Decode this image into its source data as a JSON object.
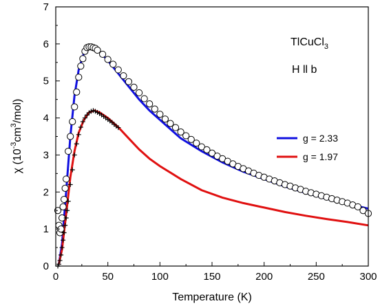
{
  "chart_data": {
    "type": "scatter",
    "annotations": {
      "compound_base": "TlCuCl",
      "compound_sub": "3",
      "field": "H ll b"
    },
    "xlabel": "Temperature (K)",
    "ylabel_parts": [
      "χ  (10",
      "-3",
      "cm",
      "3",
      "/mol)"
    ],
    "xlim": [
      0,
      300
    ],
    "ylim": [
      0,
      7
    ],
    "x_ticks": [
      0,
      50,
      100,
      150,
      200,
      250,
      300
    ],
    "y_ticks": [
      0,
      1,
      2,
      3,
      4,
      5,
      6,
      7
    ],
    "grid": false,
    "legend_position": "right-middle",
    "fits": [
      {
        "name": "g = 2.33",
        "color": "#1010e0",
        "points": [
          [
            3,
            0.05
          ],
          [
            6,
            0.6
          ],
          [
            10,
            2.0
          ],
          [
            14,
            3.5
          ],
          [
            18,
            4.6
          ],
          [
            22,
            5.3
          ],
          [
            27,
            5.75
          ],
          [
            32,
            5.9
          ],
          [
            36,
            5.9
          ],
          [
            40,
            5.85
          ],
          [
            50,
            5.55
          ],
          [
            60,
            5.2
          ],
          [
            70,
            4.85
          ],
          [
            80,
            4.5
          ],
          [
            90,
            4.2
          ],
          [
            100,
            3.95
          ],
          [
            120,
            3.45
          ],
          [
            140,
            3.1
          ],
          [
            160,
            2.8
          ],
          [
            180,
            2.55
          ],
          [
            200,
            2.35
          ],
          [
            220,
            2.15
          ],
          [
            240,
            1.98
          ],
          [
            260,
            1.82
          ],
          [
            280,
            1.68
          ],
          [
            300,
            1.55
          ]
        ]
      },
      {
        "name": "g = 1.97",
        "color": "#e01010",
        "points": [
          [
            3,
            0.05
          ],
          [
            6,
            0.45
          ],
          [
            10,
            1.4
          ],
          [
            14,
            2.4
          ],
          [
            18,
            3.1
          ],
          [
            22,
            3.6
          ],
          [
            27,
            3.95
          ],
          [
            32,
            4.15
          ],
          [
            37,
            4.2
          ],
          [
            42,
            4.15
          ],
          [
            50,
            4.0
          ],
          [
            60,
            3.75
          ],
          [
            70,
            3.45
          ],
          [
            80,
            3.15
          ],
          [
            90,
            2.9
          ],
          [
            100,
            2.7
          ],
          [
            120,
            2.35
          ],
          [
            140,
            2.05
          ],
          [
            160,
            1.85
          ],
          [
            180,
            1.7
          ],
          [
            200,
            1.58
          ],
          [
            220,
            1.46
          ],
          [
            240,
            1.36
          ],
          [
            260,
            1.27
          ],
          [
            280,
            1.19
          ],
          [
            300,
            1.1
          ]
        ]
      }
    ],
    "series": [
      {
        "marker": "circle",
        "points": [
          [
            2,
            1.5
          ],
          [
            3,
            1.1
          ],
          [
            4,
            0.9
          ],
          [
            5,
            1.0
          ],
          [
            6,
            1.3
          ],
          [
            7,
            1.6
          ],
          [
            8,
            1.8
          ],
          [
            9,
            2.1
          ],
          [
            10,
            2.35
          ],
          [
            12,
            3.1
          ],
          [
            14,
            3.5
          ],
          [
            16,
            3.9
          ],
          [
            18,
            4.3
          ],
          [
            20,
            4.7
          ],
          [
            22,
            5.1
          ],
          [
            24,
            5.4
          ],
          [
            26,
            5.6
          ],
          [
            28,
            5.8
          ],
          [
            30,
            5.9
          ],
          [
            32,
            5.92
          ],
          [
            34,
            5.92
          ],
          [
            36,
            5.9
          ],
          [
            38,
            5.88
          ],
          [
            40,
            5.83
          ],
          [
            45,
            5.72
          ],
          [
            50,
            5.58
          ],
          [
            55,
            5.45
          ],
          [
            60,
            5.3
          ],
          [
            65,
            5.14
          ],
          [
            70,
            4.98
          ],
          [
            75,
            4.83
          ],
          [
            80,
            4.68
          ],
          [
            85,
            4.52
          ],
          [
            90,
            4.38
          ],
          [
            95,
            4.24
          ],
          [
            100,
            4.1
          ],
          [
            105,
            3.97
          ],
          [
            110,
            3.85
          ],
          [
            115,
            3.74
          ],
          [
            120,
            3.62
          ],
          [
            125,
            3.52
          ],
          [
            130,
            3.42
          ],
          [
            135,
            3.32
          ],
          [
            140,
            3.22
          ],
          [
            145,
            3.14
          ],
          [
            150,
            3.05
          ],
          [
            155,
            2.97
          ],
          [
            160,
            2.9
          ],
          [
            165,
            2.83
          ],
          [
            170,
            2.76
          ],
          [
            175,
            2.69
          ],
          [
            180,
            2.63
          ],
          [
            185,
            2.57
          ],
          [
            190,
            2.51
          ],
          [
            195,
            2.45
          ],
          [
            200,
            2.4
          ],
          [
            205,
            2.35
          ],
          [
            210,
            2.3
          ],
          [
            215,
            2.25
          ],
          [
            220,
            2.2
          ],
          [
            225,
            2.16
          ],
          [
            230,
            2.11
          ],
          [
            235,
            2.07
          ],
          [
            240,
            2.02
          ],
          [
            245,
            1.98
          ],
          [
            250,
            1.94
          ],
          [
            255,
            1.9
          ],
          [
            260,
            1.86
          ],
          [
            265,
            1.82
          ],
          [
            270,
            1.78
          ],
          [
            275,
            1.74
          ],
          [
            280,
            1.7
          ],
          [
            285,
            1.65
          ],
          [
            290,
            1.6
          ],
          [
            295,
            1.5
          ],
          [
            300,
            1.42
          ]
        ]
      },
      {
        "marker": "plus",
        "points": [
          [
            2,
            0.0
          ],
          [
            3,
            0.05
          ],
          [
            4,
            0.15
          ],
          [
            5,
            0.3
          ],
          [
            6,
            0.5
          ],
          [
            7,
            0.7
          ],
          [
            8,
            0.9
          ],
          [
            9,
            1.1
          ],
          [
            10,
            1.3
          ],
          [
            11,
            1.5
          ],
          [
            12,
            1.75
          ],
          [
            14,
            2.2
          ],
          [
            16,
            2.6
          ],
          [
            18,
            3.0
          ],
          [
            20,
            3.3
          ],
          [
            22,
            3.55
          ],
          [
            24,
            3.75
          ],
          [
            26,
            3.9
          ],
          [
            28,
            4.0
          ],
          [
            30,
            4.08
          ],
          [
            32,
            4.14
          ],
          [
            34,
            4.18
          ],
          [
            36,
            4.2
          ],
          [
            38,
            4.18
          ],
          [
            40,
            4.15
          ],
          [
            42,
            4.12
          ],
          [
            44,
            4.08
          ],
          [
            46,
            4.04
          ],
          [
            48,
            4.0
          ],
          [
            50,
            3.96
          ],
          [
            52,
            3.92
          ],
          [
            54,
            3.88
          ],
          [
            56,
            3.83
          ],
          [
            58,
            3.78
          ],
          [
            60,
            3.74
          ]
        ]
      }
    ]
  }
}
